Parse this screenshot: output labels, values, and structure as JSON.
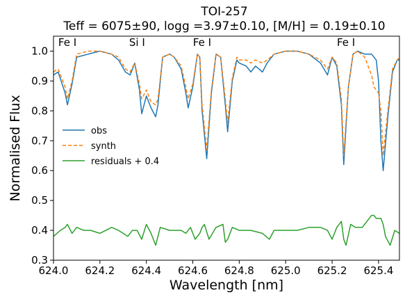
{
  "chart_data": {
    "type": "line",
    "title": "TOI-257",
    "subtitle": "Teff = 6075±90, logg =3.97±0.10, [M/H] = 0.19±0.10",
    "xlabel": "Wavelength [nm]",
    "ylabel": "Normalised Flux",
    "xlim": [
      624.0,
      625.49
    ],
    "ylim": [
      0.3,
      1.05
    ],
    "xticks": [
      "624.0",
      "624.2",
      "624.4",
      "624.6",
      "624.8",
      "625.0",
      "625.2",
      "625.4"
    ],
    "yticks": [
      "0.3",
      "0.4",
      "0.5",
      "0.6",
      "0.7",
      "0.8",
      "0.9",
      "1.0"
    ],
    "grid": false,
    "legend_position": "center-left",
    "line_annotations": [
      {
        "label": "Fe I",
        "x": 624.06
      },
      {
        "label": "Si I",
        "x": 624.36
      },
      {
        "label": "Fe I",
        "x": 624.64
      },
      {
        "label": "Fe I",
        "x": 625.26
      }
    ],
    "series": [
      {
        "name": "obs",
        "color": "#1f77b4",
        "dash": "solid",
        "x": [
          624.0,
          624.02,
          624.05,
          624.06,
          624.08,
          624.1,
          624.15,
          624.2,
          624.25,
          624.28,
          624.31,
          624.33,
          624.35,
          624.37,
          624.38,
          624.4,
          624.42,
          624.44,
          624.45,
          624.47,
          624.5,
          624.52,
          624.55,
          624.57,
          624.58,
          624.6,
          624.62,
          624.63,
          624.64,
          624.66,
          624.68,
          624.7,
          624.72,
          624.74,
          624.75,
          624.77,
          624.79,
          624.8,
          624.83,
          624.85,
          624.87,
          624.9,
          624.92,
          624.95,
          625.0,
          625.05,
          625.1,
          625.15,
          625.18,
          625.2,
          625.22,
          625.24,
          625.25,
          625.27,
          625.29,
          625.31,
          625.34,
          625.37,
          625.39,
          625.4,
          625.41,
          625.42,
          625.44,
          625.46,
          625.48,
          625.49
        ],
        "y": [
          0.92,
          0.93,
          0.86,
          0.82,
          0.89,
          0.98,
          0.99,
          1.0,
          0.99,
          0.97,
          0.93,
          0.92,
          0.96,
          0.87,
          0.79,
          0.85,
          0.81,
          0.78,
          0.82,
          0.98,
          0.99,
          0.98,
          0.94,
          0.86,
          0.81,
          0.88,
          0.99,
          0.98,
          0.8,
          0.64,
          0.86,
          0.99,
          0.98,
          0.82,
          0.73,
          0.9,
          0.97,
          0.96,
          0.95,
          0.93,
          0.95,
          0.93,
          0.96,
          0.99,
          1.0,
          1.0,
          0.99,
          0.96,
          0.92,
          0.98,
          0.95,
          0.82,
          0.62,
          0.88,
          0.99,
          1.0,
          0.99,
          0.99,
          0.97,
          0.9,
          0.7,
          0.6,
          0.78,
          0.93,
          0.97,
          0.97
        ]
      },
      {
        "name": "synth",
        "color": "#ff7f0e",
        "dash": "dashed",
        "x": [
          624.0,
          624.02,
          624.05,
          624.06,
          624.08,
          624.1,
          624.15,
          624.2,
          624.25,
          624.28,
          624.31,
          624.33,
          624.35,
          624.37,
          624.38,
          624.4,
          624.42,
          624.44,
          624.45,
          624.47,
          624.5,
          624.52,
          624.55,
          624.57,
          624.58,
          624.6,
          624.62,
          624.63,
          624.64,
          624.66,
          624.68,
          624.7,
          624.72,
          624.74,
          624.75,
          624.77,
          624.79,
          624.8,
          624.83,
          624.85,
          624.87,
          624.9,
          624.92,
          624.95,
          625.0,
          625.05,
          625.1,
          625.15,
          625.18,
          625.2,
          625.22,
          625.24,
          625.25,
          625.27,
          625.29,
          625.31,
          625.34,
          625.37,
          625.38,
          625.4,
          625.41,
          625.42,
          625.44,
          625.46,
          625.48,
          625.49
        ],
        "y": [
          0.93,
          0.94,
          0.88,
          0.84,
          0.9,
          0.99,
          1.0,
          1.0,
          0.99,
          0.98,
          0.94,
          0.93,
          0.96,
          0.89,
          0.84,
          0.87,
          0.83,
          0.82,
          0.84,
          0.98,
          0.99,
          0.98,
          0.95,
          0.88,
          0.84,
          0.89,
          0.99,
          0.98,
          0.82,
          0.67,
          0.87,
          0.99,
          0.98,
          0.84,
          0.76,
          0.91,
          0.98,
          0.97,
          0.97,
          0.96,
          0.97,
          0.96,
          0.97,
          0.99,
          1.0,
          1.0,
          0.99,
          0.97,
          0.94,
          0.98,
          0.96,
          0.84,
          0.65,
          0.88,
          0.99,
          1.0,
          0.98,
          0.92,
          0.88,
          0.86,
          0.8,
          0.65,
          0.8,
          0.94,
          0.97,
          0.98
        ]
      },
      {
        "name": "residuals + 0.4",
        "color": "#2ca02c",
        "dash": "solid",
        "x": [
          624.0,
          624.03,
          624.05,
          624.06,
          624.08,
          624.1,
          624.13,
          624.16,
          624.2,
          624.25,
          624.28,
          624.3,
          624.32,
          624.34,
          624.36,
          624.38,
          624.4,
          624.42,
          624.44,
          624.46,
          624.5,
          624.55,
          624.57,
          624.59,
          624.61,
          624.63,
          624.64,
          624.65,
          624.67,
          624.7,
          624.73,
          624.74,
          624.75,
          624.77,
          624.8,
          624.85,
          624.9,
          624.93,
          624.95,
          625.0,
          625.05,
          625.1,
          625.15,
          625.18,
          625.2,
          625.22,
          625.24,
          625.25,
          625.26,
          625.28,
          625.3,
          625.33,
          625.35,
          625.37,
          625.38,
          625.39,
          625.4,
          625.41,
          625.42,
          625.43,
          625.45,
          625.47,
          625.49
        ],
        "y": [
          0.38,
          0.4,
          0.41,
          0.42,
          0.39,
          0.41,
          0.4,
          0.4,
          0.39,
          0.41,
          0.4,
          0.39,
          0.38,
          0.4,
          0.4,
          0.37,
          0.42,
          0.39,
          0.35,
          0.41,
          0.4,
          0.4,
          0.39,
          0.41,
          0.37,
          0.39,
          0.41,
          0.42,
          0.37,
          0.41,
          0.42,
          0.36,
          0.37,
          0.41,
          0.4,
          0.4,
          0.39,
          0.37,
          0.4,
          0.4,
          0.4,
          0.41,
          0.41,
          0.4,
          0.37,
          0.41,
          0.43,
          0.37,
          0.35,
          0.42,
          0.41,
          0.41,
          0.43,
          0.45,
          0.45,
          0.44,
          0.44,
          0.44,
          0.42,
          0.38,
          0.35,
          0.4,
          0.39
        ]
      }
    ]
  }
}
